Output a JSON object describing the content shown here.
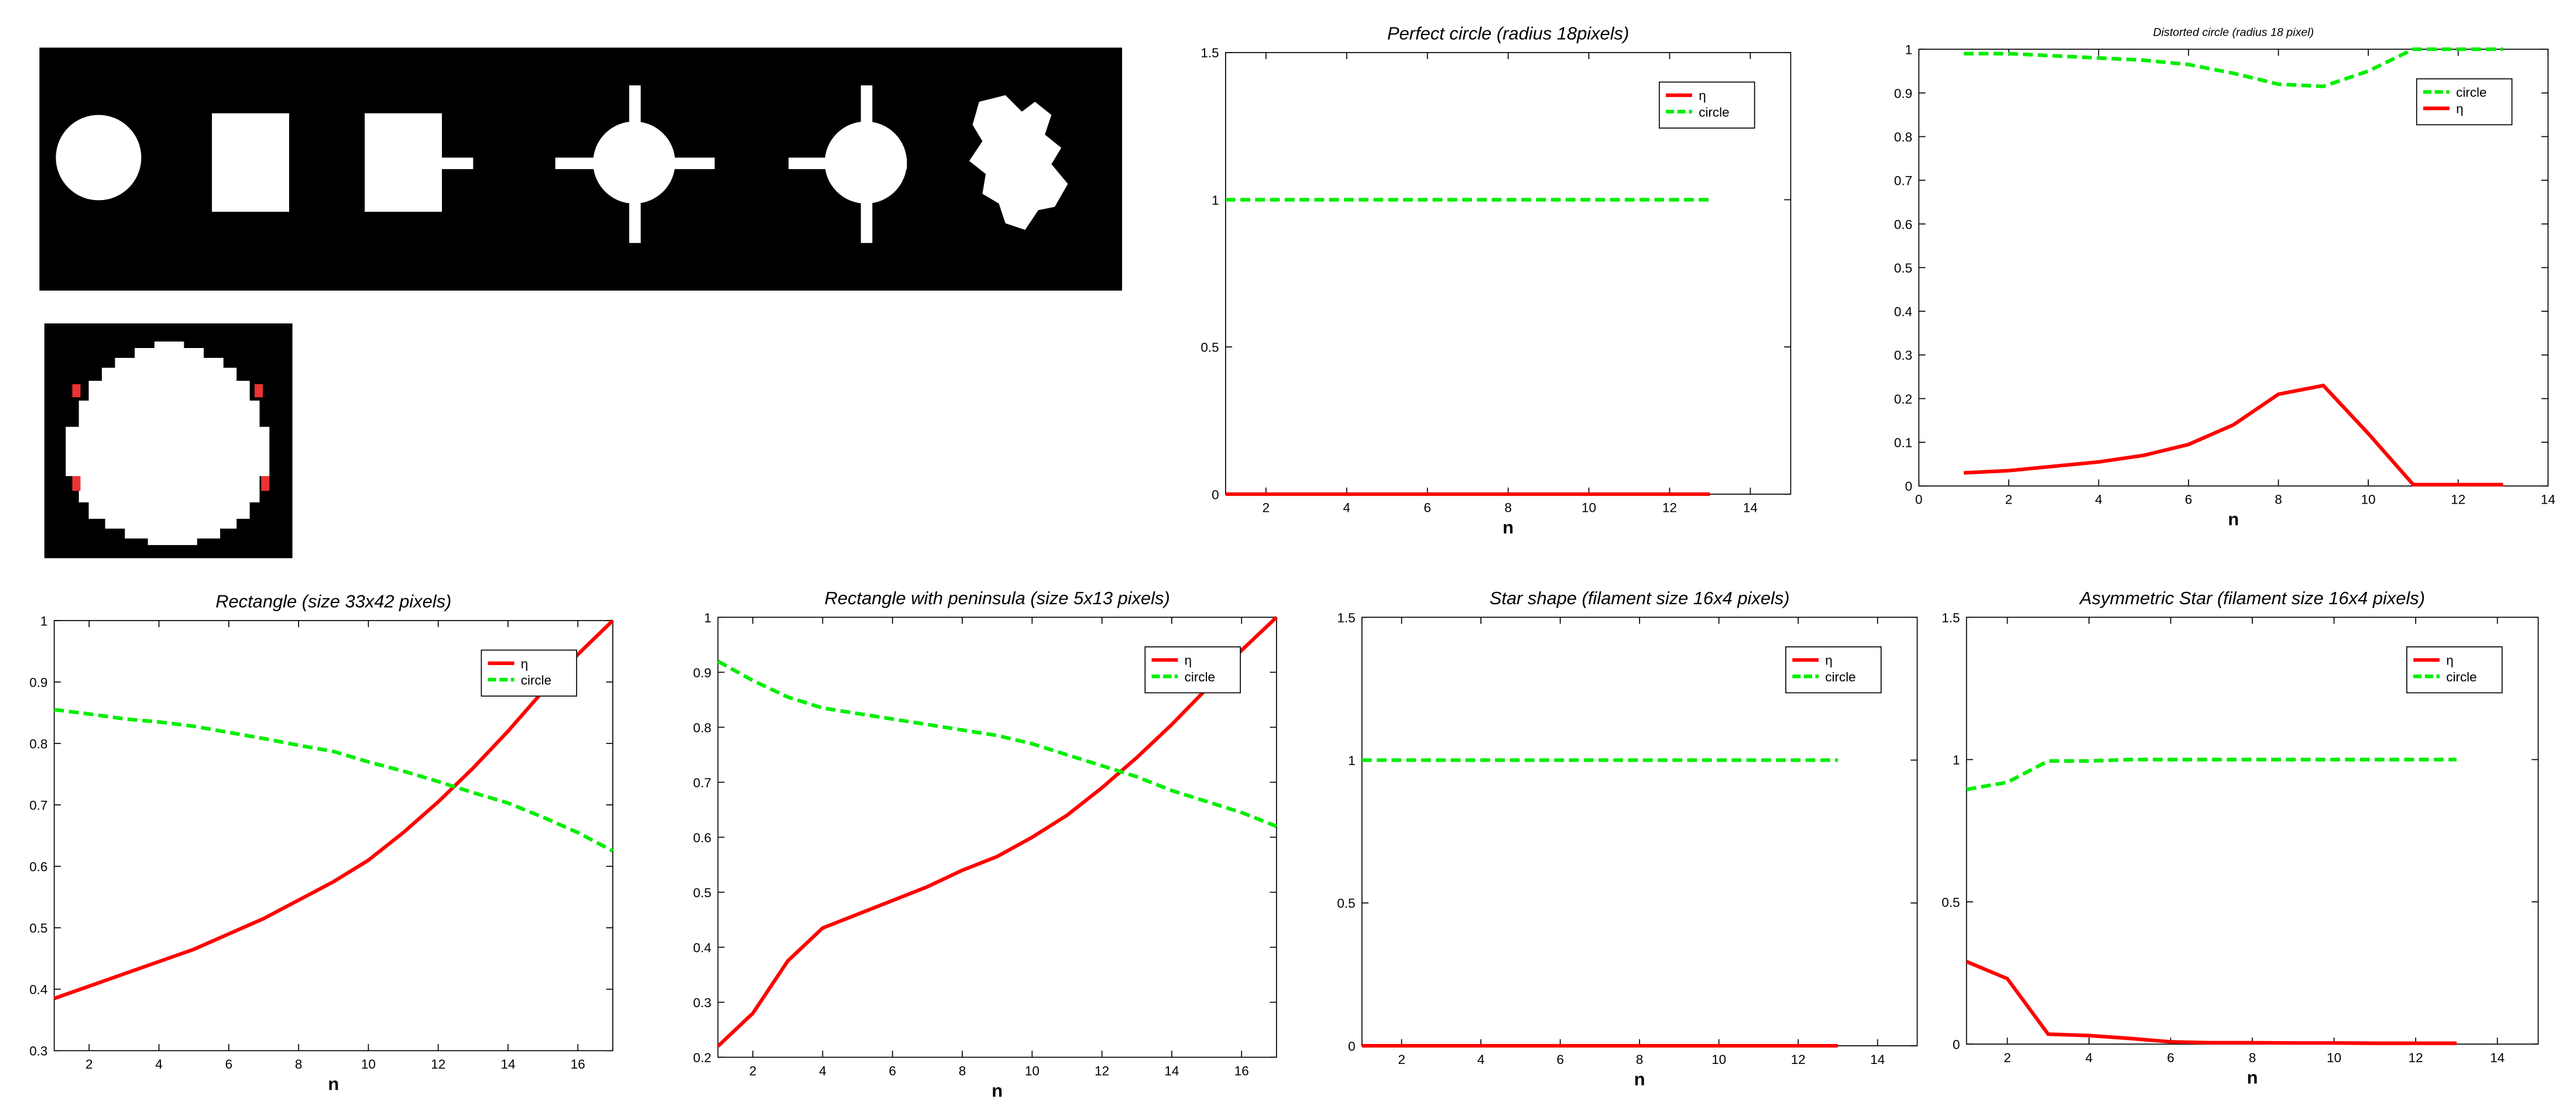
{
  "chart_data": [
    {
      "type": "line",
      "title": "Perfect circle (radius 18pixels)",
      "xlabel": "n",
      "x": [
        1,
        2,
        3,
        4,
        5,
        6,
        7,
        8,
        9,
        10,
        11,
        12,
        13
      ],
      "xlim": [
        1,
        15
      ],
      "xticks": [
        2,
        4,
        6,
        8,
        10,
        12,
        14
      ],
      "ylim": [
        0,
        1.5
      ],
      "yticks": [
        0,
        0.5,
        1,
        1.5
      ],
      "legend": "upper right",
      "series": [
        {
          "name": "η",
          "color": "#ff0000",
          "style": "solid",
          "values": [
            0,
            0,
            0,
            0,
            0,
            0,
            0,
            0,
            0,
            0,
            0,
            0,
            0
          ]
        },
        {
          "name": "circle",
          "color": "#00ee00",
          "style": "dashed",
          "values": [
            1,
            1,
            1,
            1,
            1,
            1,
            1,
            1,
            1,
            1,
            1,
            1,
            1
          ]
        }
      ]
    },
    {
      "type": "line",
      "title": "Distorted circle (radius 18 pixel)",
      "xlabel": "n",
      "x": [
        1,
        2,
        3,
        4,
        5,
        6,
        7,
        8,
        9,
        10,
        11,
        12,
        13
      ],
      "xlim": [
        0,
        14
      ],
      "xticks": [
        0,
        2,
        4,
        6,
        8,
        10,
        12,
        14
      ],
      "ylim": [
        0,
        1
      ],
      "yticks": [
        0,
        0.1,
        0.2,
        0.3,
        0.4,
        0.5,
        0.6,
        0.7,
        0.8,
        0.9,
        1
      ],
      "legend": "upper right",
      "series": [
        {
          "name": "circle",
          "color": "#00ee00",
          "style": "dashed",
          "values": [
            0.99,
            0.99,
            0.985,
            0.98,
            0.975,
            0.965,
            0.945,
            0.92,
            0.915,
            0.95,
            1,
            1,
            1
          ]
        },
        {
          "name": "η",
          "color": "#ff0000",
          "style": "solid",
          "values": [
            0.03,
            0.035,
            0.045,
            0.055,
            0.07,
            0.095,
            0.14,
            0.21,
            0.23,
            0.12,
            0.003,
            0.003,
            0.003
          ]
        }
      ]
    },
    {
      "type": "line",
      "title": "Rectangle (size 33x42 pixels)",
      "xlabel": "n",
      "x": [
        1,
        2,
        3,
        4,
        5,
        6,
        7,
        8,
        9,
        10,
        11,
        12,
        13,
        14,
        15,
        16,
        17
      ],
      "xlim": [
        1,
        17
      ],
      "xticks": [
        2,
        4,
        6,
        8,
        10,
        12,
        14,
        16
      ],
      "ylim": [
        0.3,
        1
      ],
      "yticks": [
        0.3,
        0.4,
        0.5,
        0.6,
        0.7,
        0.8,
        0.9,
        1
      ],
      "legend": "upper right",
      "series": [
        {
          "name": "η",
          "color": "#ff0000",
          "style": "solid",
          "values": [
            0.385,
            0.405,
            0.425,
            0.445,
            0.465,
            0.49,
            0.515,
            0.545,
            0.575,
            0.61,
            0.655,
            0.705,
            0.76,
            0.82,
            0.885,
            0.945,
            1.0
          ]
        },
        {
          "name": "circle",
          "color": "#00ee00",
          "style": "dashed",
          "values": [
            0.855,
            0.848,
            0.84,
            0.835,
            0.828,
            0.818,
            0.808,
            0.797,
            0.787,
            0.77,
            0.755,
            0.738,
            0.72,
            0.703,
            0.68,
            0.655,
            0.625
          ]
        }
      ]
    },
    {
      "type": "line",
      "title": "Rectangle with peninsula (size 5x13 pixels)",
      "xlabel": "n",
      "x": [
        1,
        2,
        3,
        4,
        5,
        6,
        7,
        8,
        9,
        10,
        11,
        12,
        13,
        14,
        15,
        16,
        17
      ],
      "xlim": [
        1,
        17
      ],
      "xticks": [
        2,
        4,
        6,
        8,
        10,
        12,
        14,
        16
      ],
      "ylim": [
        0.2,
        1
      ],
      "yticks": [
        0.2,
        0.3,
        0.4,
        0.5,
        0.6,
        0.7,
        0.8,
        0.9,
        1
      ],
      "legend": "upper right",
      "series": [
        {
          "name": "η",
          "color": "#ff0000",
          "style": "solid",
          "values": [
            0.22,
            0.28,
            0.375,
            0.435,
            0.46,
            0.485,
            0.51,
            0.54,
            0.565,
            0.6,
            0.64,
            0.69,
            0.745,
            0.805,
            0.87,
            0.94,
            1.0
          ]
        },
        {
          "name": "circle",
          "color": "#00ee00",
          "style": "dashed",
          "values": [
            0.92,
            0.885,
            0.855,
            0.835,
            0.825,
            0.815,
            0.805,
            0.795,
            0.785,
            0.77,
            0.75,
            0.73,
            0.71,
            0.685,
            0.665,
            0.645,
            0.62
          ]
        }
      ]
    },
    {
      "type": "line",
      "title": "Star shape (filament size 16x4 pixels)",
      "xlabel": "n",
      "x": [
        1,
        2,
        3,
        4,
        5,
        6,
        7,
        8,
        9,
        10,
        11,
        12,
        13
      ],
      "xlim": [
        1,
        15
      ],
      "xticks": [
        2,
        4,
        6,
        8,
        10,
        12,
        14
      ],
      "ylim": [
        0,
        1.5
      ],
      "yticks": [
        0,
        0.5,
        1,
        1.5
      ],
      "legend": "upper right",
      "series": [
        {
          "name": "η",
          "color": "#ff0000",
          "style": "solid",
          "values": [
            0,
            0,
            0,
            0,
            0,
            0,
            0,
            0,
            0,
            0,
            0,
            0,
            0
          ]
        },
        {
          "name": "circle",
          "color": "#00ee00",
          "style": "dashed",
          "values": [
            1,
            1,
            1,
            1,
            1,
            1,
            1,
            1,
            1,
            1,
            1,
            1,
            1
          ]
        }
      ]
    },
    {
      "type": "line",
      "title": "Asymmetric Star  (filament size 16x4 pixels)",
      "xlabel": "n",
      "x": [
        1,
        2,
        3,
        4,
        5,
        6,
        7,
        8,
        9,
        10,
        11,
        12,
        13
      ],
      "xlim": [
        1,
        15
      ],
      "xticks": [
        2,
        4,
        6,
        8,
        10,
        12,
        14
      ],
      "ylim": [
        0,
        1.5
      ],
      "yticks": [
        0,
        0.5,
        1,
        1.5
      ],
      "legend": "upper right",
      "series": [
        {
          "name": "η",
          "color": "#ff0000",
          "style": "solid",
          "values": [
            0.29,
            0.23,
            0.035,
            0.03,
            0.02,
            0.008,
            0.005,
            0.005,
            0.004,
            0.004,
            0.003,
            0.003,
            0.003
          ]
        },
        {
          "name": "circle",
          "color": "#00ee00",
          "style": "dashed",
          "values": [
            0.895,
            0.92,
            0.995,
            0.995,
            1,
            1,
            1,
            1,
            1,
            1,
            1,
            1,
            1
          ]
        }
      ]
    }
  ]
}
